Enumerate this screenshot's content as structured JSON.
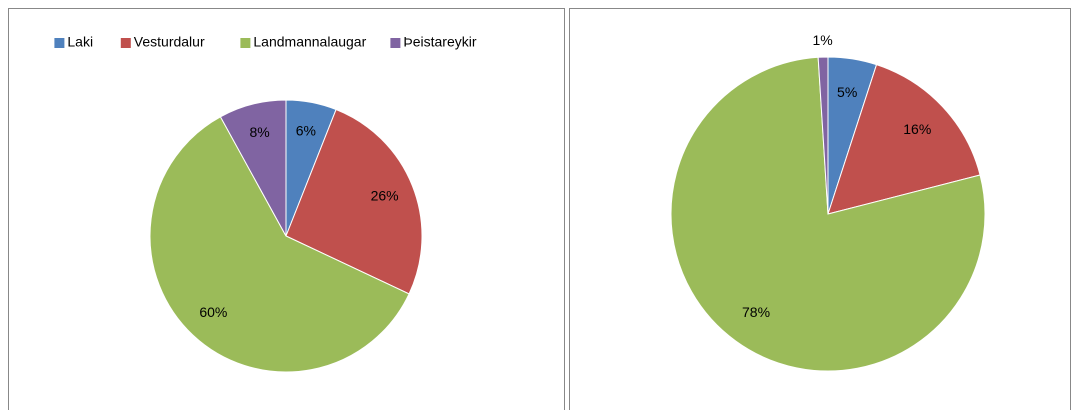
{
  "chart_data": [
    {
      "type": "pie",
      "categories": [
        "Laki",
        "Vesturdalur",
        "Landmannalaugar",
        "Þeistareykir"
      ],
      "values": [
        6,
        26,
        60,
        8
      ],
      "value_labels": [
        "6%",
        "26%",
        "60%",
        "8%"
      ],
      "colors": [
        "#4f81bd",
        "#c0504d",
        "#9bbb59",
        "#8064a2"
      ],
      "legend": "top"
    },
    {
      "type": "pie",
      "values": [
        5,
        16,
        78,
        1
      ],
      "value_labels": [
        "5%",
        "16%",
        "78%",
        "1%"
      ],
      "colors": [
        "#4f81bd",
        "#c0504d",
        "#9bbb59",
        "#8064a2"
      ]
    }
  ]
}
